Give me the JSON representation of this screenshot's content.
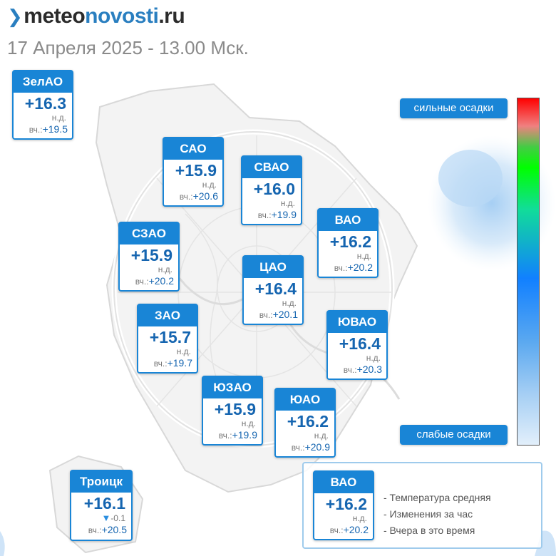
{
  "header": {
    "logo_part1": "meteo",
    "logo_part2": "novosti",
    "logo_part3": ".ru",
    "logo_mark": "❯",
    "date": "17 Апреля 2025 - 13.00 Мск."
  },
  "districts": [
    {
      "key": "zelao",
      "name": "ЗелАО",
      "temp": "+16.3",
      "change": "н.д.",
      "yesterday_label": "вч.:",
      "yesterday": "+19.5"
    },
    {
      "key": "sao",
      "name": "САО",
      "temp": "+15.9",
      "change": "н.д.",
      "yesterday_label": "вч.:",
      "yesterday": "+20.6"
    },
    {
      "key": "svao",
      "name": "СВАО",
      "temp": "+16.0",
      "change": "н.д.",
      "yesterday_label": "вч.:",
      "yesterday": "+19.9"
    },
    {
      "key": "vao",
      "name": "ВАО",
      "temp": "+16.2",
      "change": "н.д.",
      "yesterday_label": "вч.:",
      "yesterday": "+20.2"
    },
    {
      "key": "szao",
      "name": "СЗАО",
      "temp": "+15.9",
      "change": "н.д.",
      "yesterday_label": "вч.:",
      "yesterday": "+20.2"
    },
    {
      "key": "cao",
      "name": "ЦАО",
      "temp": "+16.4",
      "change": "н.д.",
      "yesterday_label": "вч.:",
      "yesterday": "+20.1"
    },
    {
      "key": "zao",
      "name": "ЗАО",
      "temp": "+15.7",
      "change": "н.д.",
      "yesterday_label": "вч.:",
      "yesterday": "+19.7"
    },
    {
      "key": "yuvao",
      "name": "ЮВАО",
      "temp": "+16.4",
      "change": "н.д.",
      "yesterday_label": "вч.:",
      "yesterday": "+20.3"
    },
    {
      "key": "yuzao",
      "name": "ЮЗАО",
      "temp": "+15.9",
      "change": "н.д.",
      "yesterday_label": "вч.:",
      "yesterday": "+19.9"
    },
    {
      "key": "yuao",
      "name": "ЮАО",
      "temp": "+16.2",
      "change": "н.д.",
      "yesterday_label": "вч.:",
      "yesterday": "+20.9"
    },
    {
      "key": "troitsk",
      "name": "Троицк",
      "temp": "+16.1",
      "change_arrow": "▼",
      "change": "-0.1",
      "yesterday_label": "вч.:",
      "yesterday": "+20.5"
    }
  ],
  "scale": {
    "top_label": "сильные осадки",
    "bottom_label": "слабые осадки"
  },
  "legend": {
    "sample_name": "ВАО",
    "sample_temp": "+16.2",
    "sample_change": "н.д.",
    "sample_yesterday_label": "вч.:",
    "sample_yesterday": "+20.2",
    "line1": "- Температура средняя",
    "line2": "- Изменения за час",
    "line3": "- Вчера в это время"
  },
  "colors": {
    "accent": "#1985d6",
    "temp_text": "#1565b0",
    "scale_top": "#ff0000",
    "scale_bottom": "#e2effb"
  }
}
